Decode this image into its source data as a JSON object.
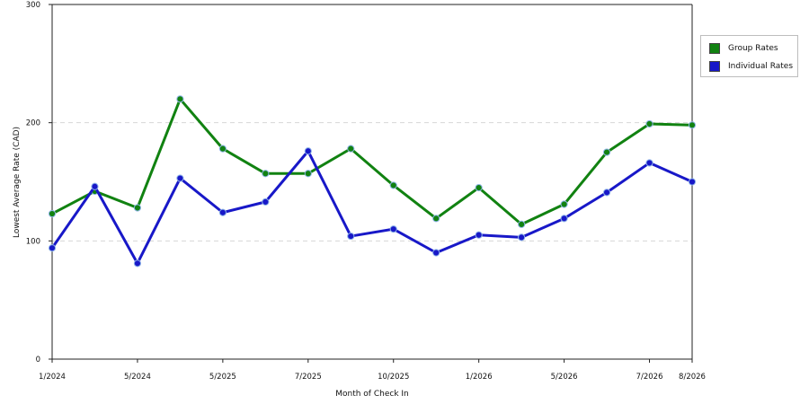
{
  "chart_data": {
    "type": "line",
    "xlabel": "Month of Check In",
    "ylabel": "Lowest Average Rate (CAD)",
    "ylim": [
      0,
      300
    ],
    "yticks": [
      0,
      100,
      200,
      300
    ],
    "x_tick_labels": [
      "1/2024",
      "",
      "5/2024",
      "",
      "5/2025",
      "",
      "7/2025",
      "",
      "10/2025",
      "",
      "1/2026",
      "",
      "5/2026",
      "",
      "7/2026",
      "8/2026"
    ],
    "grid": "horizontal dashed",
    "legend_position": "right",
    "series": [
      {
        "name": "Group Rates",
        "color": "#118211",
        "values": [
          123,
          142,
          128,
          220,
          178,
          157,
          157,
          178,
          147,
          119,
          145,
          114,
          131,
          175,
          199,
          198
        ]
      },
      {
        "name": "Individual Rates",
        "color": "#1818c8",
        "values": [
          94,
          146,
          81,
          153,
          124,
          133,
          176,
          104,
          110,
          90,
          105,
          103,
          119,
          141,
          166,
          150
        ]
      }
    ]
  }
}
